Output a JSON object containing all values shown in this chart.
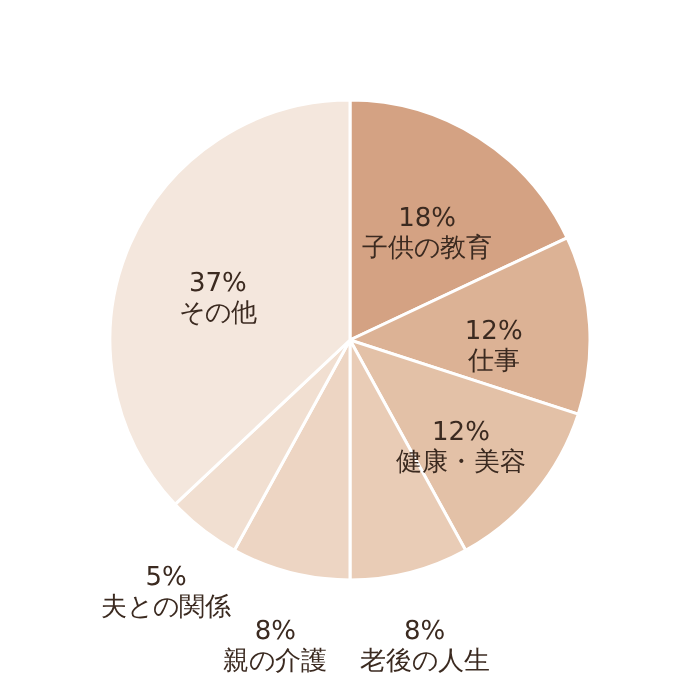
{
  "chart_data": {
    "type": "pie",
    "categories": [
      "子供の教育",
      "仕事",
      "健康・美容",
      "老後の人生",
      "親の介護",
      "夫との関係",
      "その他"
    ],
    "values": [
      18,
      12,
      12,
      8,
      8,
      5,
      37
    ],
    "value_labels": [
      "18%",
      "12%",
      "12%",
      "8%",
      "8%",
      "5%",
      "37%"
    ],
    "colors": [
      "#d4a283",
      "#dcb295",
      "#e3c1a7",
      "#e9ccb6",
      "#edd5c3",
      "#f1dfd1",
      "#f4e7dd"
    ]
  }
}
